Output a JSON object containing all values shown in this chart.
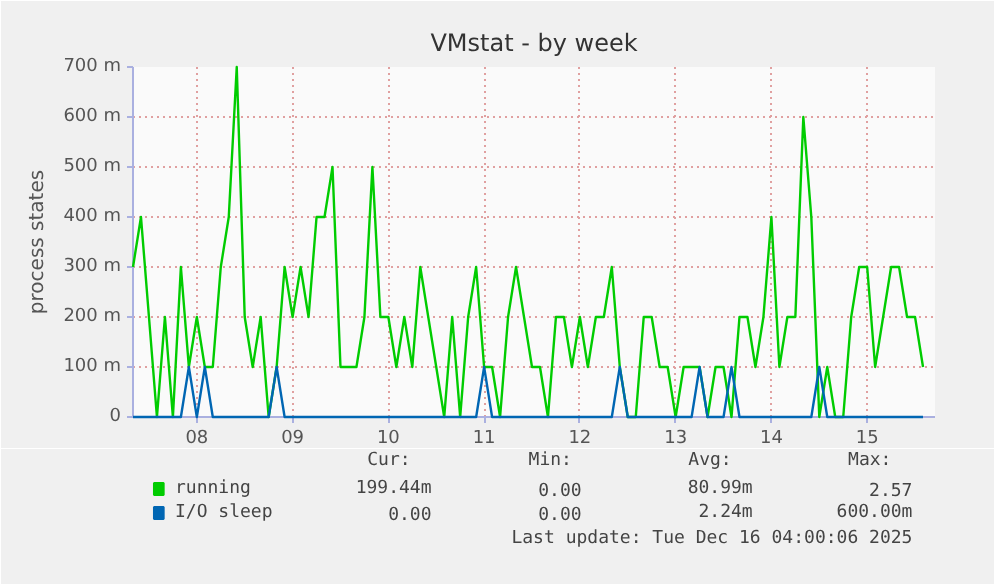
{
  "chart_data": {
    "type": "line",
    "title": "VMstat - by week",
    "ylabel": "process states",
    "x": [
      "2025-12-07T08:00",
      "2025-12-07T10:00",
      "2025-12-07T12:00",
      "2025-12-07T14:00",
      "2025-12-07T16:00",
      "2025-12-07T18:00",
      "2025-12-07T20:00",
      "2025-12-07T22:00",
      "2025-12-08T00:00",
      "2025-12-08T02:00",
      "2025-12-08T04:00",
      "2025-12-08T06:00",
      "2025-12-08T08:00",
      "2025-12-08T10:00",
      "2025-12-08T12:00",
      "2025-12-08T14:00",
      "2025-12-08T16:00",
      "2025-12-08T18:00",
      "2025-12-08T20:00",
      "2025-12-08T22:00",
      "2025-12-09T00:00",
      "2025-12-09T02:00",
      "2025-12-09T04:00",
      "2025-12-09T06:00",
      "2025-12-09T08:00",
      "2025-12-09T10:00",
      "2025-12-09T12:00",
      "2025-12-09T14:00",
      "2025-12-09T16:00",
      "2025-12-09T18:00",
      "2025-12-09T20:00",
      "2025-12-09T22:00",
      "2025-12-10T00:00",
      "2025-12-10T02:00",
      "2025-12-10T04:00",
      "2025-12-10T06:00",
      "2025-12-10T08:00",
      "2025-12-10T10:00",
      "2025-12-10T12:00",
      "2025-12-10T14:00",
      "2025-12-10T16:00",
      "2025-12-10T18:00",
      "2025-12-10T20:00",
      "2025-12-10T22:00",
      "2025-12-11T00:00",
      "2025-12-11T02:00",
      "2025-12-11T04:00",
      "2025-12-11T06:00",
      "2025-12-11T08:00",
      "2025-12-11T10:00",
      "2025-12-11T12:00",
      "2025-12-11T14:00",
      "2025-12-11T16:00",
      "2025-12-11T18:00",
      "2025-12-11T20:00",
      "2025-12-11T22:00",
      "2025-12-12T00:00",
      "2025-12-12T02:00",
      "2025-12-12T04:00",
      "2025-12-12T06:00",
      "2025-12-12T08:00",
      "2025-12-12T10:00",
      "2025-12-12T12:00",
      "2025-12-12T14:00",
      "2025-12-12T16:00",
      "2025-12-12T18:00",
      "2025-12-12T20:00",
      "2025-12-12T22:00",
      "2025-12-13T00:00",
      "2025-12-13T02:00",
      "2025-12-13T04:00",
      "2025-12-13T06:00",
      "2025-12-13T08:00",
      "2025-12-13T10:00",
      "2025-12-13T12:00",
      "2025-12-13T14:00",
      "2025-12-13T16:00",
      "2025-12-13T18:00",
      "2025-12-13T20:00",
      "2025-12-13T22:00",
      "2025-12-14T00:00",
      "2025-12-14T02:00",
      "2025-12-14T04:00",
      "2025-12-14T06:00",
      "2025-12-14T08:00",
      "2025-12-14T10:00",
      "2025-12-14T12:00",
      "2025-12-14T14:00",
      "2025-12-14T16:00",
      "2025-12-14T18:00",
      "2025-12-14T20:00",
      "2025-12-14T22:00",
      "2025-12-15T00:00",
      "2025-12-15T02:00",
      "2025-12-15T04:00",
      "2025-12-15T06:00",
      "2025-12-15T08:00",
      "2025-12-15T10:00",
      "2025-12-15T12:00",
      "2025-12-15T14:00"
    ],
    "series": [
      {
        "name": "running",
        "color": "#00cc00",
        "values": [
          300,
          400,
          200,
          0,
          200,
          0,
          300,
          100,
          200,
          100,
          100,
          300,
          400,
          700,
          200,
          100,
          200,
          0,
          100,
          300,
          200,
          300,
          200,
          400,
          400,
          500,
          100,
          100,
          100,
          200,
          500,
          200,
          200,
          100,
          200,
          100,
          300,
          200,
          100,
          0,
          200,
          0,
          200,
          300,
          100,
          100,
          0,
          200,
          300,
          200,
          100,
          100,
          0,
          200,
          200,
          100,
          200,
          100,
          200,
          200,
          300,
          100,
          0,
          0,
          200,
          200,
          100,
          100,
          0,
          100,
          100,
          100,
          0,
          100,
          100,
          0,
          200,
          200,
          100,
          200,
          400,
          100,
          200,
          200,
          600,
          400,
          0,
          100,
          0,
          0,
          200,
          300,
          300,
          100,
          200,
          300,
          300,
          200,
          200,
          100
        ]
      },
      {
        "name": "I/O sleep",
        "color": "#0066b3",
        "values": [
          0,
          0,
          0,
          0,
          0,
          0,
          0,
          100,
          0,
          100,
          0,
          0,
          0,
          0,
          0,
          0,
          0,
          0,
          100,
          0,
          0,
          0,
          0,
          0,
          0,
          0,
          0,
          0,
          0,
          0,
          0,
          0,
          0,
          0,
          0,
          0,
          0,
          0,
          0,
          0,
          0,
          0,
          0,
          0,
          100,
          0,
          0,
          0,
          0,
          0,
          0,
          0,
          0,
          0,
          0,
          0,
          0,
          0,
          0,
          0,
          0,
          100,
          0,
          0,
          0,
          0,
          0,
          0,
          0,
          0,
          0,
          100,
          0,
          0,
          0,
          100,
          0,
          0,
          0,
          0,
          0,
          0,
          0,
          0,
          0,
          0,
          100,
          0,
          0,
          0,
          0,
          0,
          0,
          0,
          0,
          0,
          0,
          0,
          0,
          0
        ]
      }
    ],
    "xlim": [
      "2025-12-07T08:00",
      "2025-12-15T17:00"
    ],
    "xticks": [
      {
        "value": "2025-12-08",
        "label": "08"
      },
      {
        "value": "2025-12-09",
        "label": "09"
      },
      {
        "value": "2025-12-10",
        "label": "10"
      },
      {
        "value": "2025-12-11",
        "label": "11"
      },
      {
        "value": "2025-12-12",
        "label": "12"
      },
      {
        "value": "2025-12-13",
        "label": "13"
      },
      {
        "value": "2025-12-14",
        "label": "14"
      },
      {
        "value": "2025-12-15",
        "label": "15"
      }
    ],
    "ylim": [
      0,
      700
    ],
    "yticks": [
      {
        "value": 0,
        "label": "0"
      },
      {
        "value": 100,
        "label": "100 m"
      },
      {
        "value": 200,
        "label": "200 m"
      },
      {
        "value": 300,
        "label": "300 m"
      },
      {
        "value": 400,
        "label": "400 m"
      },
      {
        "value": 500,
        "label": "500 m"
      },
      {
        "value": 600,
        "label": "600 m"
      },
      {
        "value": 700,
        "label": "700 m"
      }
    ],
    "grid": true,
    "legend": "bottom",
    "line_style": "solid",
    "annotations": [
      "Cur:",
      "Min:",
      "Avg:",
      "Max:",
      "199.44m",
      "0.00",
      "80.99m",
      "2.57",
      "0.00",
      "0.00",
      "2.24m",
      "600.00m",
      "Last update: Tue Dec 16 04:00:06 2025"
    ]
  }
}
